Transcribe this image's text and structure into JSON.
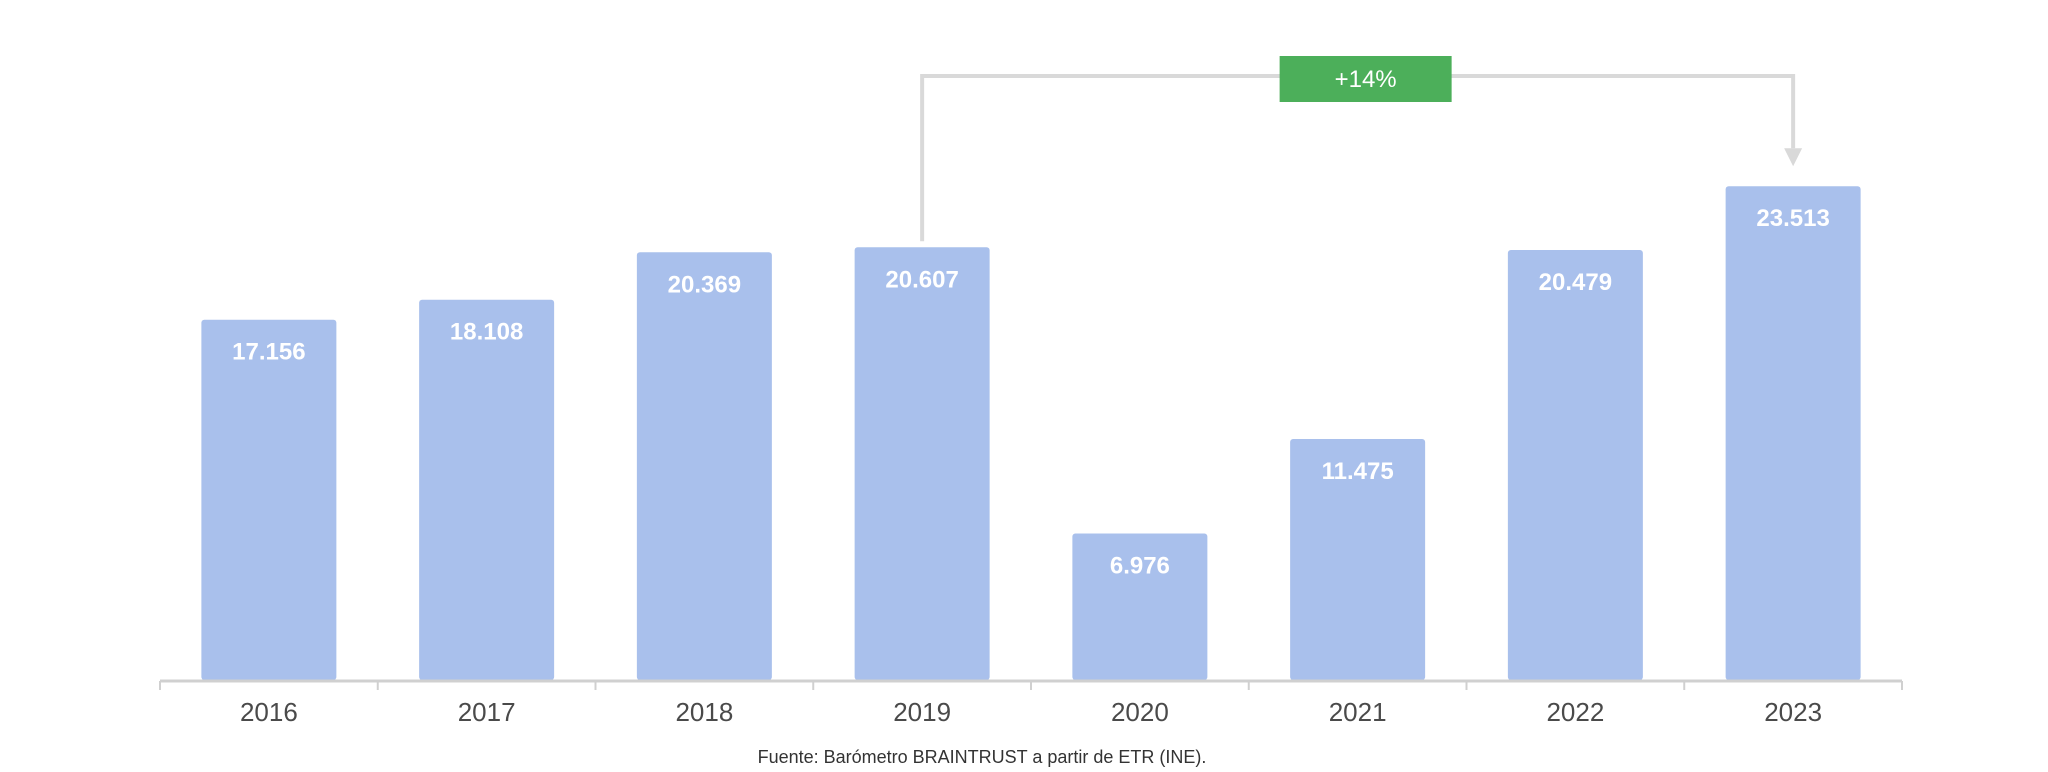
{
  "chart_data": {
    "type": "bar",
    "categories": [
      "2016",
      "2017",
      "2018",
      "2019",
      "2020",
      "2021",
      "2022",
      "2023"
    ],
    "values": [
      17156,
      18108,
      20369,
      20607,
      6976,
      11475,
      20479,
      23513
    ],
    "value_labels": [
      "17.156",
      "18.108",
      "20.369",
      "20.607",
      "6.976",
      "11.475",
      "20.479",
      "23.513"
    ],
    "ylim": [
      0,
      26000
    ],
    "grid": false,
    "bar_color": "#a9c0ec",
    "annotation": {
      "text": "+14%",
      "from": "2019",
      "to": "2023",
      "color": "#4caf5a",
      "line_color": "#d9d9d9"
    },
    "source": "Fuente: Barómetro BRAINTRUST a partir de ETR (INE)."
  }
}
